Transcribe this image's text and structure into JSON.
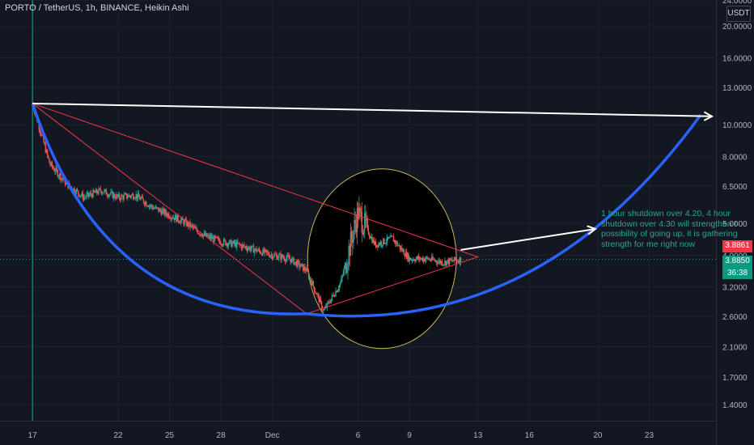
{
  "header": {
    "symbol_title": "PORTO / TetherUS, 1h, BINANCE, Heikin Ashi",
    "currency": "USDT"
  },
  "price_tags": {
    "last_price": "3.8861",
    "current_price": "3.8850",
    "countdown": "36:38"
  },
  "annotation": {
    "lines": [
      "1 hour shutdown over 4.20, 4 hour",
      "shutdown over 4.30 will strengthen t",
      "possibility of going up, it is gathering",
      "strength for me right now"
    ]
  },
  "colors": {
    "background": "#131722",
    "up_candle": "#26a69a",
    "down_candle": "#ef5350",
    "cup_curve": "#2962ff",
    "arrows": "#ffffff",
    "triangle": "#f23645",
    "circle_outline": "#c9b458",
    "circle_fill": "#000000",
    "start_marker": "#26a69a"
  },
  "chart_data": {
    "type": "candlestick",
    "scale": "log",
    "ylim": [
      1.25,
      24.0
    ],
    "y_ticks": [
      "24.0000",
      "20.0000",
      "16.0000",
      "13.0000",
      "10.0000",
      "8.0000",
      "6.5000",
      "5.0000",
      "4.0000",
      "3.2000",
      "2.6000",
      "2.1000",
      "1.7000",
      "1.4000"
    ],
    "x_ticks": [
      "17",
      "22",
      "25",
      "28",
      "Dec",
      "6",
      "9",
      "13",
      "16",
      "20",
      "23"
    ],
    "x_range": [
      "Nov 16",
      "Dec 26"
    ],
    "series": [
      {
        "name": "PORTO/USDT 1h close (approx)",
        "x": [
          "Nov 17",
          "Nov 18",
          "Nov 19",
          "Nov 20",
          "Nov 21",
          "Nov 22",
          "Nov 23",
          "Nov 24",
          "Nov 25",
          "Nov 26",
          "Nov 27",
          "Nov 28",
          "Nov 29",
          "Nov 30",
          "Dec 1",
          "Dec 2",
          "Dec 3",
          "Dec 4",
          "Dec 5",
          "Dec 6",
          "Dec 7",
          "Dec 8",
          "Dec 9",
          "Dec 10",
          "Dec 11",
          "Dec 12"
        ],
        "values": [
          11.6,
          7.6,
          6.6,
          6.0,
          6.3,
          6.0,
          6.1,
          5.6,
          5.3,
          5.0,
          4.6,
          4.4,
          4.3,
          4.15,
          4.0,
          3.9,
          3.6,
          2.7,
          3.3,
          5.4,
          4.3,
          4.5,
          3.9,
          3.9,
          3.8,
          3.885
        ]
      }
    ],
    "drawings": {
      "cup_curve": {
        "start": [
          "Nov 17",
          11.6
        ],
        "bottom": [
          "Dec 3",
          2.65
        ],
        "end": [
          "Dec 26",
          10.7
        ]
      },
      "horizontal_arrow": {
        "from": [
          "Nov 17",
          11.6
        ],
        "to": [
          "Dec 26",
          10.6
        ]
      },
      "breakout_arrow": {
        "from": [
          "Dec 12",
          4.15
        ],
        "to": [
          "Dec 19",
          4.9
        ]
      },
      "triangle": {
        "apex": [
          "Nov 17",
          11.6
        ],
        "bottom": [
          "Dec 3",
          2.65
        ],
        "tip": [
          "Dec 13",
          3.95
        ]
      }
    }
  }
}
